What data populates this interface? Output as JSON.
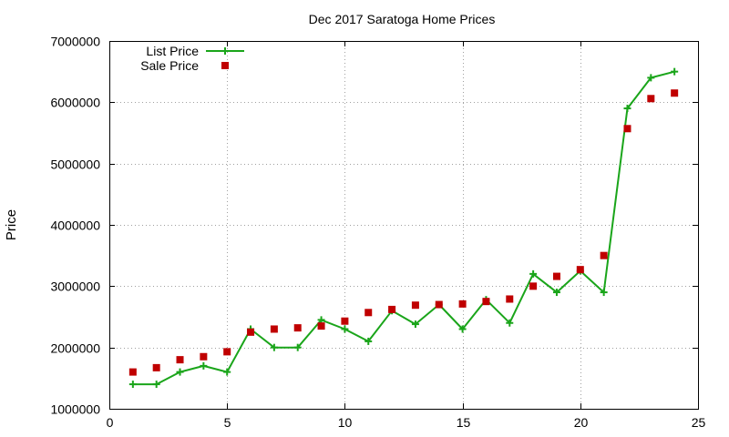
{
  "chart_data": {
    "type": "line",
    "title": "Dec 2017 Saratoga Home Prices",
    "xlabel": "",
    "ylabel": "Price",
    "xlim": [
      0,
      25
    ],
    "ylim": [
      1000000,
      7000000
    ],
    "x_ticks": [
      "0",
      "5",
      "10",
      "15",
      "20",
      "25"
    ],
    "y_ticks": [
      "1000000",
      "2000000",
      "3000000",
      "4000000",
      "5000000",
      "6000000",
      "7000000"
    ],
    "grid": true,
    "legend_position": "top-left",
    "x": [
      1,
      2,
      3,
      4,
      5,
      6,
      7,
      8,
      9,
      10,
      11,
      12,
      13,
      14,
      15,
      16,
      17,
      18,
      19,
      20,
      21,
      22,
      23,
      24
    ],
    "series": [
      {
        "name": "List Price",
        "style": "lines+points",
        "marker": "plus",
        "color": "#1aa51a",
        "values": [
          1400000,
          1400000,
          1600000,
          1700000,
          1600000,
          2300000,
          2000000,
          2000000,
          2450000,
          2300000,
          2100000,
          2600000,
          2380000,
          2700000,
          2300000,
          2780000,
          2400000,
          3200000,
          2900000,
          3250000,
          2900000,
          5900000,
          6400000,
          6500000
        ]
      },
      {
        "name": "Sale Price",
        "style": "points",
        "marker": "square",
        "color": "#c00000",
        "values": [
          1600000,
          1670000,
          1800000,
          1850000,
          1930000,
          2250000,
          2300000,
          2320000,
          2350000,
          2430000,
          2570000,
          2620000,
          2690000,
          2700000,
          2710000,
          2750000,
          2790000,
          3000000,
          3160000,
          3270000,
          3500000,
          5570000,
          6060000,
          6150000
        ]
      }
    ]
  }
}
